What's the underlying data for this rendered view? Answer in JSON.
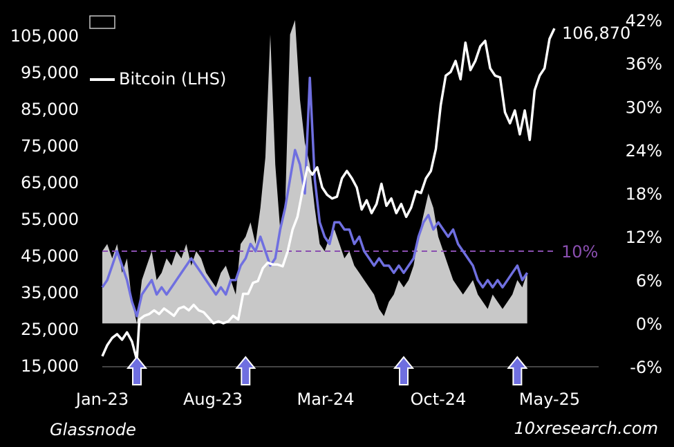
{
  "chart_data": {
    "type": "line",
    "left_axis": {
      "ticks": [
        "105,000",
        "95,000",
        "85,000",
        "75,000",
        "65,000",
        "55,000",
        "45,000",
        "35,000",
        "25,000",
        "15,000"
      ],
      "ylim": [
        15000,
        105000
      ]
    },
    "right_axis": {
      "ticks": [
        "42%",
        "36%",
        "30%",
        "24%",
        "18%",
        "12%",
        "6%",
        "0%",
        "-6%"
      ],
      "ylim": [
        -6,
        42
      ]
    },
    "x_ticks": [
      "Jan-23",
      "Aug-23",
      "Mar-24",
      "Oct-24",
      "May-25"
    ],
    "legend": [
      {
        "label": "",
        "color": "#c8c8c8",
        "swatch": "box"
      },
      {
        "label": "Bitcoin (LHS)",
        "color": "#ffffff",
        "swatch": "line"
      }
    ],
    "reference_line": {
      "value": 10,
      "label": "10%",
      "color": "#8a4fb0"
    },
    "end_label": "106,870",
    "series": [
      {
        "name": "Bitcoin (LHS)",
        "axis": "left",
        "color": "#ffffff",
        "points": [
          [
            0,
            17500
          ],
          [
            2,
            20500
          ],
          [
            4,
            22500
          ],
          [
            6,
            23500
          ],
          [
            8,
            22000
          ],
          [
            10,
            24000
          ],
          [
            12,
            21500
          ],
          [
            14,
            16500
          ],
          [
            15,
            27500
          ],
          [
            17,
            28500
          ],
          [
            19,
            29000
          ],
          [
            21,
            30000
          ],
          [
            23,
            29000
          ],
          [
            25,
            30500
          ],
          [
            27,
            29500
          ],
          [
            29,
            28500
          ],
          [
            31,
            30500
          ],
          [
            33,
            31000
          ],
          [
            35,
            30000
          ],
          [
            37,
            31500
          ],
          [
            39,
            30000
          ],
          [
            41,
            29500
          ],
          [
            43,
            28000
          ],
          [
            45,
            26500
          ],
          [
            47,
            27000
          ],
          [
            49,
            26500
          ],
          [
            51,
            27000
          ],
          [
            53,
            28500
          ],
          [
            55,
            27500
          ],
          [
            57,
            34500
          ],
          [
            59,
            34500
          ],
          [
            61,
            37500
          ],
          [
            63,
            38000
          ],
          [
            65,
            41500
          ],
          [
            67,
            43000
          ],
          [
            69,
            42500
          ],
          [
            71,
            42500
          ],
          [
            73,
            42000
          ],
          [
            75,
            46000
          ],
          [
            77,
            52000
          ],
          [
            79,
            55500
          ],
          [
            81,
            62500
          ],
          [
            83,
            69000
          ],
          [
            85,
            67000
          ],
          [
            87,
            69000
          ],
          [
            89,
            63500
          ],
          [
            91,
            61500
          ],
          [
            93,
            60500
          ],
          [
            95,
            61000
          ],
          [
            97,
            66000
          ],
          [
            99,
            68000
          ],
          [
            101,
            66000
          ],
          [
            103,
            63500
          ],
          [
            105,
            57500
          ],
          [
            107,
            60000
          ],
          [
            109,
            56500
          ],
          [
            111,
            59000
          ],
          [
            113,
            64500
          ],
          [
            115,
            58500
          ],
          [
            117,
            60500
          ],
          [
            119,
            56500
          ],
          [
            121,
            59000
          ],
          [
            123,
            55500
          ],
          [
            125,
            58000
          ],
          [
            127,
            62500
          ],
          [
            129,
            62000
          ],
          [
            131,
            66000
          ],
          [
            133,
            68000
          ],
          [
            135,
            74000
          ],
          [
            137,
            86000
          ],
          [
            139,
            94000
          ],
          [
            141,
            95000
          ],
          [
            143,
            98000
          ],
          [
            145,
            93000
          ],
          [
            147,
            103000
          ],
          [
            149,
            95500
          ],
          [
            151,
            98000
          ],
          [
            153,
            102000
          ],
          [
            155,
            103500
          ],
          [
            157,
            96000
          ],
          [
            159,
            94000
          ],
          [
            161,
            93500
          ],
          [
            163,
            84000
          ],
          [
            165,
            81000
          ],
          [
            167,
            84500
          ],
          [
            169,
            78000
          ],
          [
            171,
            84500
          ],
          [
            173,
            76500
          ],
          [
            175,
            90000
          ],
          [
            177,
            94000
          ],
          [
            179,
            96000
          ],
          [
            181,
            104000
          ],
          [
            183,
            106870
          ]
        ]
      },
      {
        "name": "",
        "axis": "right",
        "color": "#6f6fe0",
        "points": [
          [
            0,
            5
          ],
          [
            2,
            6
          ],
          [
            4,
            8
          ],
          [
            6,
            10
          ],
          [
            8,
            8
          ],
          [
            10,
            6
          ],
          [
            12,
            3
          ],
          [
            14,
            1
          ],
          [
            16,
            4
          ],
          [
            18,
            5
          ],
          [
            20,
            6
          ],
          [
            22,
            4
          ],
          [
            24,
            5
          ],
          [
            26,
            4
          ],
          [
            28,
            5
          ],
          [
            30,
            6
          ],
          [
            32,
            7
          ],
          [
            34,
            8
          ],
          [
            36,
            9
          ],
          [
            38,
            8
          ],
          [
            40,
            7
          ],
          [
            42,
            6
          ],
          [
            44,
            5
          ],
          [
            46,
            4
          ],
          [
            48,
            5
          ],
          [
            50,
            4
          ],
          [
            52,
            6
          ],
          [
            54,
            6
          ],
          [
            56,
            8
          ],
          [
            58,
            9
          ],
          [
            60,
            11
          ],
          [
            62,
            10
          ],
          [
            64,
            12
          ],
          [
            66,
            10
          ],
          [
            68,
            8
          ],
          [
            70,
            9
          ],
          [
            72,
            13
          ],
          [
            74,
            16
          ],
          [
            76,
            20
          ],
          [
            78,
            24
          ],
          [
            80,
            22
          ],
          [
            82,
            18
          ],
          [
            84,
            34
          ],
          [
            86,
            20
          ],
          [
            88,
            14
          ],
          [
            90,
            12
          ],
          [
            92,
            11
          ],
          [
            94,
            14
          ],
          [
            96,
            14
          ],
          [
            98,
            13
          ],
          [
            100,
            13
          ],
          [
            102,
            11
          ],
          [
            104,
            12
          ],
          [
            106,
            10
          ],
          [
            108,
            9
          ],
          [
            110,
            8
          ],
          [
            112,
            9
          ],
          [
            114,
            8
          ],
          [
            116,
            8
          ],
          [
            118,
            7
          ],
          [
            120,
            8
          ],
          [
            122,
            7
          ],
          [
            124,
            8
          ],
          [
            126,
            9
          ],
          [
            128,
            12
          ],
          [
            130,
            14
          ],
          [
            132,
            15
          ],
          [
            134,
            13
          ],
          [
            136,
            14
          ],
          [
            138,
            13
          ],
          [
            140,
            12
          ],
          [
            142,
            13
          ],
          [
            144,
            11
          ],
          [
            146,
            10
          ],
          [
            148,
            9
          ],
          [
            150,
            8
          ],
          [
            152,
            6
          ],
          [
            154,
            5
          ],
          [
            156,
            6
          ],
          [
            158,
            5
          ],
          [
            160,
            6
          ],
          [
            162,
            5
          ],
          [
            164,
            6
          ],
          [
            166,
            7
          ],
          [
            168,
            8
          ],
          [
            170,
            6
          ],
          [
            172,
            7
          ]
        ]
      },
      {
        "name": "",
        "axis": "right",
        "color": "#c8c8c8",
        "type": "area",
        "points": [
          [
            0,
            10
          ],
          [
            2,
            11
          ],
          [
            4,
            9
          ],
          [
            6,
            11
          ],
          [
            8,
            7
          ],
          [
            10,
            9
          ],
          [
            12,
            3
          ],
          [
            14,
            0
          ],
          [
            16,
            6
          ],
          [
            18,
            8
          ],
          [
            20,
            10
          ],
          [
            22,
            6
          ],
          [
            24,
            7
          ],
          [
            26,
            9
          ],
          [
            28,
            8
          ],
          [
            30,
            10
          ],
          [
            32,
            9
          ],
          [
            34,
            11
          ],
          [
            36,
            8
          ],
          [
            38,
            10
          ],
          [
            40,
            9
          ],
          [
            42,
            7
          ],
          [
            44,
            6
          ],
          [
            46,
            5
          ],
          [
            48,
            7
          ],
          [
            50,
            8
          ],
          [
            52,
            6
          ],
          [
            54,
            4
          ],
          [
            56,
            11
          ],
          [
            58,
            12
          ],
          [
            60,
            14
          ],
          [
            62,
            11
          ],
          [
            64,
            16
          ],
          [
            66,
            23
          ],
          [
            68,
            40
          ],
          [
            70,
            22
          ],
          [
            72,
            13
          ],
          [
            74,
            16
          ],
          [
            76,
            40
          ],
          [
            78,
            42
          ],
          [
            80,
            31
          ],
          [
            82,
            25
          ],
          [
            84,
            22
          ],
          [
            86,
            16
          ],
          [
            88,
            11
          ],
          [
            90,
            10
          ],
          [
            92,
            12
          ],
          [
            94,
            13
          ],
          [
            96,
            11
          ],
          [
            98,
            9
          ],
          [
            100,
            10
          ],
          [
            102,
            8
          ],
          [
            104,
            7
          ],
          [
            106,
            6
          ],
          [
            108,
            5
          ],
          [
            110,
            4
          ],
          [
            112,
            2
          ],
          [
            114,
            1
          ],
          [
            116,
            3
          ],
          [
            118,
            4
          ],
          [
            120,
            6
          ],
          [
            122,
            5
          ],
          [
            124,
            6
          ],
          [
            126,
            8
          ],
          [
            128,
            12
          ],
          [
            130,
            15
          ],
          [
            132,
            18
          ],
          [
            134,
            16
          ],
          [
            136,
            12
          ],
          [
            138,
            10
          ],
          [
            140,
            8
          ],
          [
            142,
            6
          ],
          [
            144,
            5
          ],
          [
            146,
            4
          ],
          [
            148,
            5
          ],
          [
            150,
            6
          ],
          [
            152,
            4
          ],
          [
            154,
            3
          ],
          [
            156,
            2
          ],
          [
            158,
            4
          ],
          [
            160,
            3
          ],
          [
            162,
            2
          ],
          [
            164,
            3
          ],
          [
            166,
            4
          ],
          [
            168,
            6
          ],
          [
            170,
            5
          ],
          [
            172,
            7
          ]
        ]
      }
    ],
    "markers": [
      {
        "type": "up-arrow",
        "x": 14
      },
      {
        "type": "up-arrow",
        "x": 58
      },
      {
        "type": "up-arrow",
        "x": 122
      },
      {
        "type": "up-arrow",
        "x": 168
      }
    ]
  },
  "footer": {
    "source": "Glassnode",
    "brand": "10xresearch.com"
  }
}
